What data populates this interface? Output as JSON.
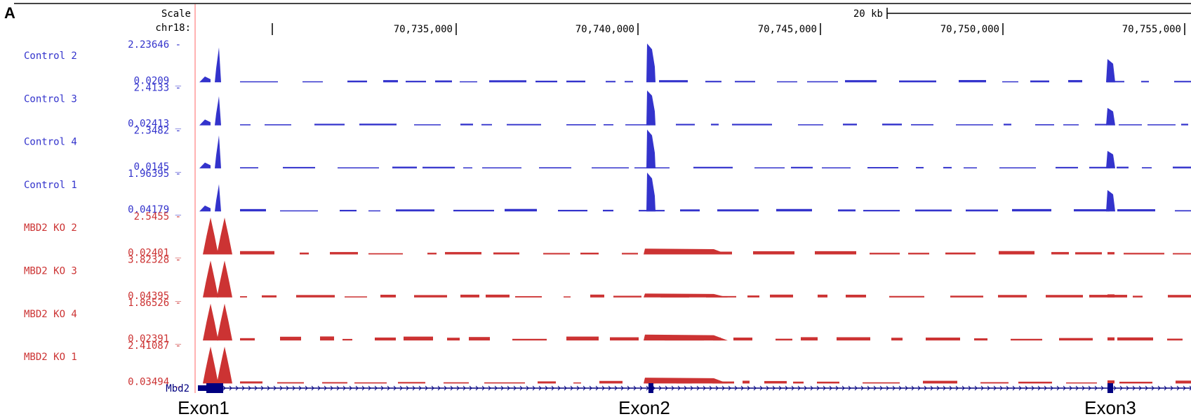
{
  "panel_label": "A",
  "browser": {
    "scale_label": "Scale",
    "chrom_label": "chr18:",
    "scale_bar_label": "20 kb",
    "position_ticks": [
      "70,735,000",
      "70,740,000",
      "70,745,000",
      "70,750,000",
      "70,755,000"
    ],
    "gene_label": "Mbd2",
    "exon_labels": [
      "Exon1",
      "Exon2",
      "Exon3"
    ],
    "colors": {
      "control": "#3333cc",
      "ko": "#cc3333",
      "gene": "#000080",
      "divider": "#ff9999"
    }
  },
  "chart_data": {
    "type": "area",
    "x_unit": "chr18 position",
    "exon_peaks": [
      "Exon1",
      "Exon2",
      "Exon3"
    ],
    "tracks": [
      {
        "name": "Control 2",
        "group": "control",
        "max": "2.23646",
        "min": "0.0209",
        "peaks": {
          "Exon1": 0.9,
          "Exon2": 1.0,
          "Exon3": 0.6
        },
        "bg": 0.04
      },
      {
        "name": "Control 3",
        "group": "control",
        "max": "2.4133",
        "min": "0.02413",
        "peaks": {
          "Exon1": 0.75,
          "Exon2": 0.9,
          "Exon3": 0.45
        },
        "bg": 0.03
      },
      {
        "name": "Control 4",
        "group": "control",
        "max": "2.3482",
        "min": "0.0145",
        "peaks": {
          "Exon1": 0.85,
          "Exon2": 1.0,
          "Exon3": 0.45
        },
        "bg": 0.03
      },
      {
        "name": "Control 1",
        "group": "control",
        "max": "1.96395",
        "min": "0.04179",
        "peaks": {
          "Exon1": 0.7,
          "Exon2": 1.0,
          "Exon3": 0.55
        },
        "bg": 0.05
      },
      {
        "name": "MBD2 KO 2",
        "group": "ko",
        "max": "2.5455",
        "min": "0.02401",
        "peaks": {
          "Exon1": 1.0,
          "Exon2": 0.15,
          "Exon3": 0.06
        },
        "bg": 0.06
      },
      {
        "name": "MBD2 KO 3",
        "group": "ko",
        "max": "3.82328",
        "min": "0.04395",
        "peaks": {
          "Exon1": 1.0,
          "Exon2": 0.1,
          "Exon3": 0.08
        },
        "bg": 0.05
      },
      {
        "name": "MBD2 KO 4",
        "group": "ko",
        "max": "1.86526",
        "min": "0.02391",
        "peaks": {
          "Exon1": 1.0,
          "Exon2": 0.15,
          "Exon3": 0.08
        },
        "bg": 0.07
      },
      {
        "name": "MBD2 KO 1",
        "group": "ko",
        "max": "2.41087",
        "min": "0.03494",
        "peaks": {
          "Exon1": 1.0,
          "Exon2": 0.15,
          "Exon3": 0.08
        },
        "bg": 0.05
      }
    ]
  }
}
